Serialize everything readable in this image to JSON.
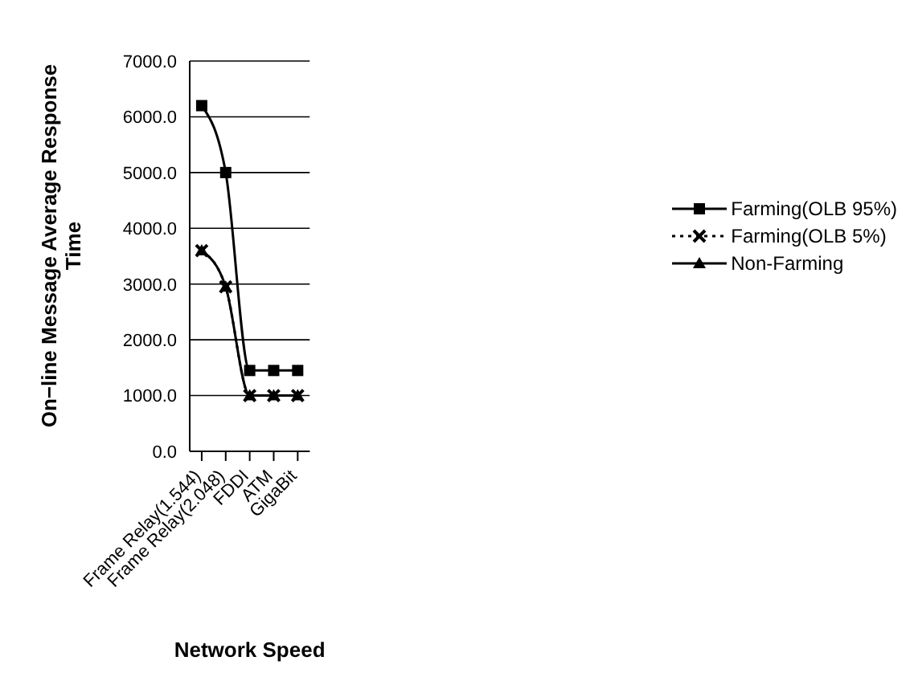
{
  "chart_data": {
    "type": "line",
    "xlabel": "Network Speed",
    "ylabel": "On−line Message Average Response Time",
    "categories": [
      "Frame Relay(1.544)",
      "Frame Relay(2.048)",
      "FDDI",
      "ATM",
      "GigaBit"
    ],
    "series": [
      {
        "name": "Farming(OLB 95%)",
        "color": "#000000",
        "marker": "square",
        "line_style": "solid",
        "values": [
          6200,
          5000,
          1450,
          1450,
          1450
        ]
      },
      {
        "name": "Farming(OLB 5%)",
        "color": "#000000",
        "marker": "cross",
        "line_style": "dotted",
        "values": [
          3600,
          2950,
          1000,
          1000,
          1000
        ]
      },
      {
        "name": "Non-Farming",
        "color": "#000000",
        "marker": "triangle",
        "line_style": "solid",
        "values": [
          3600,
          2950,
          1000,
          1000,
          1000
        ]
      }
    ],
    "ylim": [
      0,
      7000
    ],
    "yticks": [
      {
        "value": 0,
        "label": "0.0"
      },
      {
        "value": 1000,
        "label": "1000.0"
      },
      {
        "value": 2000,
        "label": "2000.0"
      },
      {
        "value": 3000,
        "label": "3000.0"
      },
      {
        "value": 4000,
        "label": "4000.0"
      },
      {
        "value": 5000,
        "label": "5000.0"
      },
      {
        "value": 6000,
        "label": "6000.0"
      },
      {
        "value": 7000,
        "label": "7000.0"
      }
    ],
    "grid": "y",
    "legend": "right"
  }
}
